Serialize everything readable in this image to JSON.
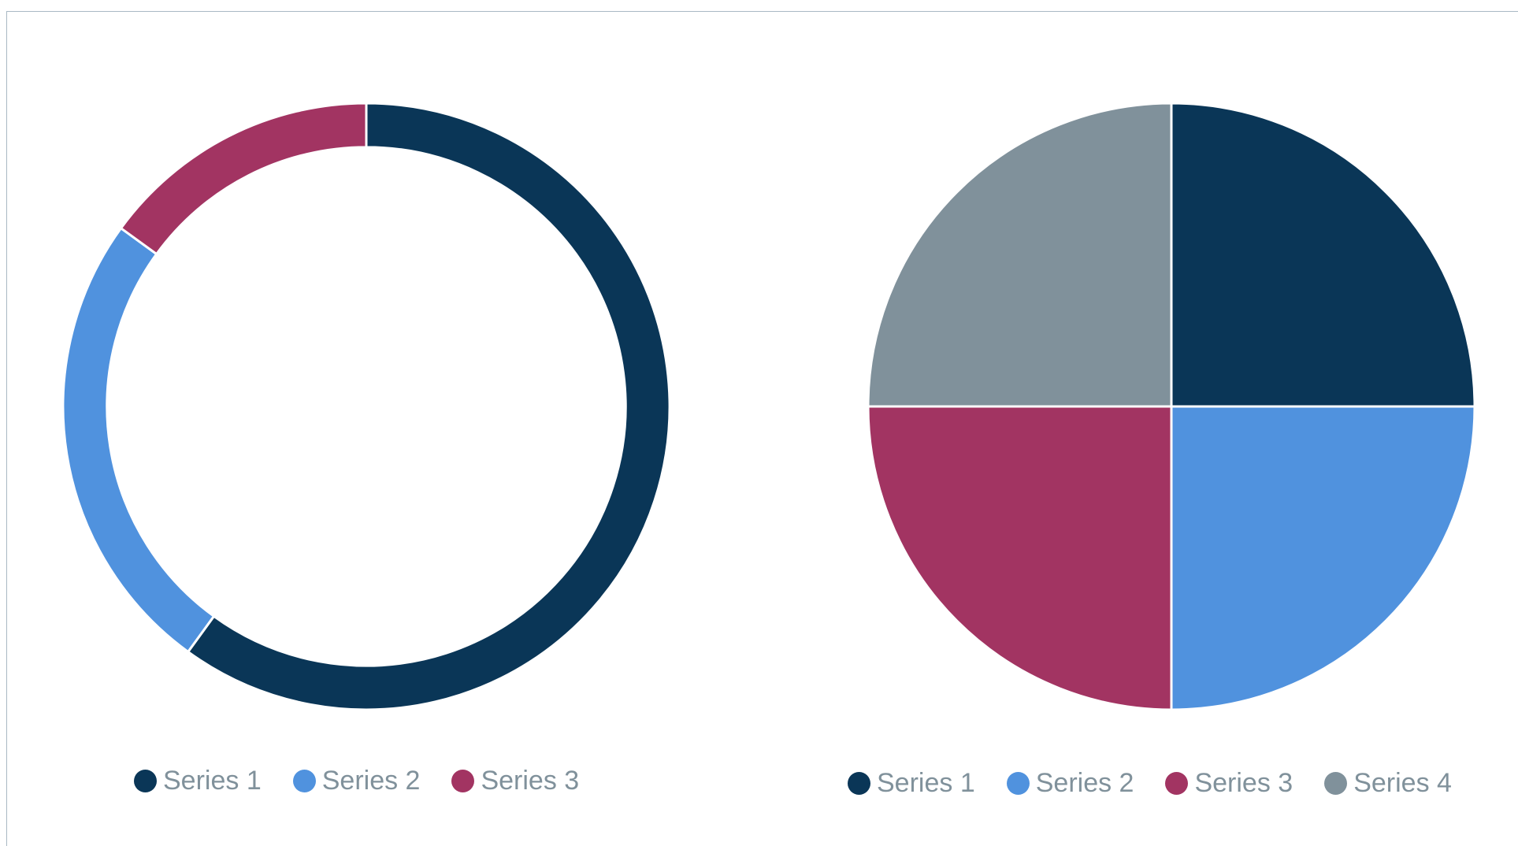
{
  "chart_data": [
    {
      "type": "pie",
      "variant": "donut",
      "series": [
        {
          "name": "Series 1",
          "value": 60
        },
        {
          "name": "Series 2",
          "value": 25
        },
        {
          "name": "Series 3",
          "value": 15
        }
      ],
      "colors": [
        "#0a3657",
        "#5092de",
        "#a23462"
      ],
      "legend": {
        "position": "bottom",
        "labels": [
          "Series 1",
          "Series 2",
          "Series 3"
        ]
      }
    },
    {
      "type": "pie",
      "series": [
        {
          "name": "Series 1",
          "value": 25
        },
        {
          "name": "Series 2",
          "value": 25
        },
        {
          "name": "Series 3",
          "value": 25
        },
        {
          "name": "Series 4",
          "value": 25
        }
      ],
      "colors": [
        "#0a3657",
        "#5092de",
        "#a23462",
        "#80919b"
      ],
      "legend": {
        "position": "bottom",
        "labels": [
          "Series 1",
          "Series 2",
          "Series 3",
          "Series 4"
        ]
      }
    }
  ]
}
